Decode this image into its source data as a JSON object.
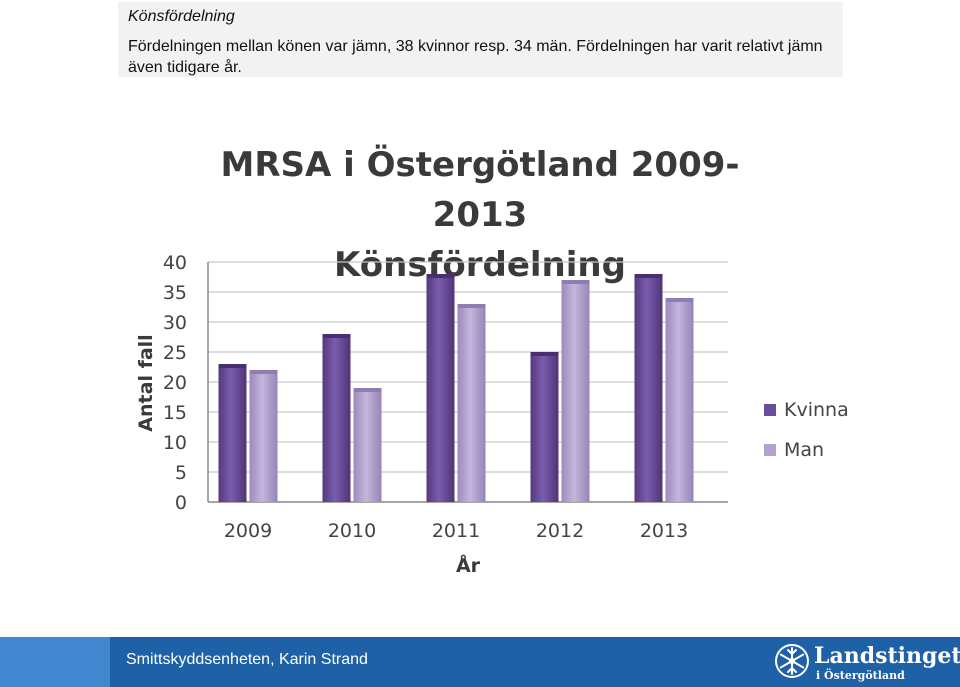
{
  "header": {
    "title": "Könsfördelning",
    "text": "Fördelningen mellan könen var jämn, 38 kvinnor resp. 34 män. Fördelningen har varit relativt jämn även tidigare år."
  },
  "chart_data": {
    "type": "bar",
    "title": "MRSA i Östergötland 2009-2013",
    "subtitle": "Könsfördelning",
    "xlabel": "År",
    "ylabel": "Antal fall",
    "categories": [
      "2009",
      "2010",
      "2011",
      "2012",
      "2013"
    ],
    "series": [
      {
        "name": "Kvinna",
        "values": [
          23,
          28,
          38,
          25,
          38
        ],
        "color": "#6a4c9c"
      },
      {
        "name": "Man",
        "values": [
          22,
          19,
          33,
          37,
          34
        ],
        "color": "#b2a1cd"
      }
    ],
    "ylim": [
      0,
      40
    ],
    "yticks": [
      "0",
      "5",
      "10",
      "15",
      "20",
      "25",
      "30",
      "35",
      "40"
    ],
    "grid": true,
    "legend": "right"
  },
  "footer": {
    "text": "Smittskyddsenheten, Karin Strand",
    "logo_name": "Landstinget",
    "logo_sub": "i Östergötland",
    "logo_icon": "snowflake-icon"
  }
}
